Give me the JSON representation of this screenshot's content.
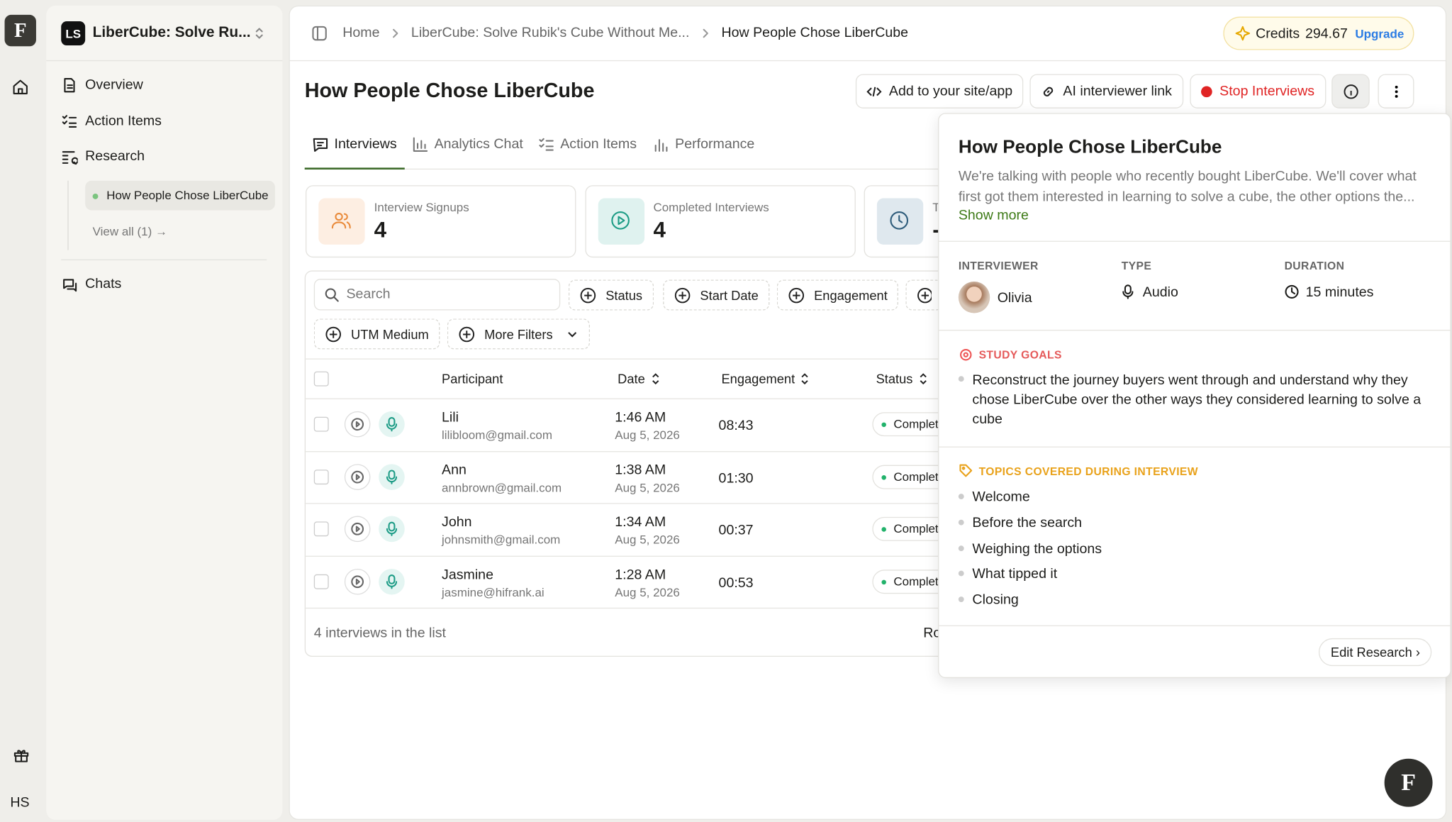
{
  "rail": {
    "logo": "F",
    "user": "HS"
  },
  "sidebar": {
    "workspace_badge": "LS",
    "workspace_name": "LiberCube: Solve Ru...",
    "nav": [
      "Overview",
      "Action Items",
      "Research"
    ],
    "sub_item": "How People Chose LiberCube",
    "view_all": "View all (1) →",
    "chats": "Chats"
  },
  "breadcrumb": [
    "Home",
    "LiberCube: Solve Rubik's Cube Without Me...",
    "How People Chose LiberCube"
  ],
  "credits": {
    "label": "Credits",
    "amount": "294.67",
    "upgrade": "Upgrade"
  },
  "header": {
    "title": "How People Chose LiberCube",
    "buttons": [
      "Add to your site/app",
      "AI interviewer link",
      "Stop Interviews"
    ]
  },
  "tabs": [
    "Interviews",
    "Analytics Chat",
    "Action Items",
    "Performance"
  ],
  "stats": [
    {
      "label": "Interview Signups",
      "value": "4"
    },
    {
      "label": "Completed Interviews",
      "value": "4"
    },
    {
      "label": "T",
      "value": "-"
    }
  ],
  "filters": {
    "search": "Search",
    "chips": [
      "Status",
      "Start Date",
      "Engagement"
    ],
    "chips2": [
      "UTM Medium",
      "More Filters"
    ]
  },
  "table": {
    "headers": [
      "Participant",
      "Date",
      "Engagement",
      "Status"
    ],
    "rows": [
      [
        "Lili",
        "lilibloom@gmail.com",
        "1:46 AM",
        "Aug 5, 2026",
        "08:43",
        "Complet"
      ],
      [
        "Ann",
        "annbrown@gmail.com",
        "1:38 AM",
        "Aug 5, 2026",
        "01:30",
        "Complet"
      ],
      [
        "John",
        "johnsmith@gmail.com",
        "1:34 AM",
        "Aug 5, 2026",
        "00:37",
        "Complet"
      ],
      [
        "Jasmine",
        "jasmine@hifrank.ai",
        "1:28 AM",
        "Aug 5, 2026",
        "00:53",
        "Complet"
      ]
    ],
    "footer": "4 interviews in the list",
    "rows_per_page": "Ro"
  },
  "popover": {
    "title": "How People Chose LiberCube",
    "description": "We're talking with people who recently bought LiberCube. We'll cover what first got them interested in learning to solve a cube, the other options the...",
    "show_more": "Show more",
    "meta": [
      {
        "label": "INTERVIEWER",
        "value": "Olivia"
      },
      {
        "label": "TYPE",
        "value": "Audio"
      },
      {
        "label": "DURATION",
        "value": "15 minutes"
      }
    ],
    "goals_label": "STUDY GOALS",
    "goals": [
      "Reconstruct the journey buyers went through and understand why they chose LiberCube over the other ways they considered learning to solve a cube"
    ],
    "topics_label": "TOPICS COVERED DURING INTERVIEW",
    "topics": [
      "Welcome",
      "Before the search",
      "Weighing the options",
      "What tipped it",
      "Closing"
    ],
    "edit": "Edit Research ›"
  }
}
